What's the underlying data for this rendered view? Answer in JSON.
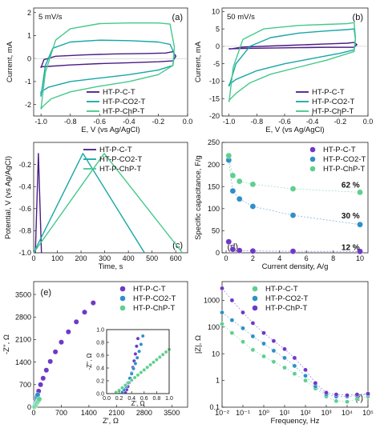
{
  "figure": {
    "colors": {
      "c": "#4b1b86",
      "co2": "#17a6a6",
      "chp": "#44c98a"
    },
    "marker_colors": {
      "c": "#6e39c6",
      "co2": "#2f8fc9",
      "chp": "#5fcf8f"
    }
  },
  "chart_data": [
    {
      "id": "a",
      "type": "line",
      "panel_label": "(a)",
      "annotation": "5 mV/s",
      "xlabel": "E, V (vs Ag/AgCl)",
      "ylabel": "Current, mA",
      "xlim": [
        -1.05,
        0.0
      ],
      "ylim": [
        -2.5,
        2.2
      ],
      "xticks": [
        -1.0,
        -0.8,
        -0.6,
        -0.4,
        -0.2,
        0.0
      ],
      "xtick_labels": [
        "-1.0",
        "-0.8",
        "-0.6",
        "-0.4",
        "-0.2",
        "0.0"
      ],
      "yticks": [
        -2,
        -1,
        0,
        1,
        2
      ],
      "ytick_labels": [
        "-2",
        "-1",
        "0",
        "1",
        "2"
      ],
      "legend": "lower-center",
      "series": [
        {
          "name": "HT-P-C-T",
          "key": "c",
          "x": [
            -1.0,
            -0.98,
            -0.9,
            -0.7,
            -0.5,
            -0.3,
            -0.15,
            -0.1,
            -0.08,
            -0.1,
            -0.2,
            -0.4,
            -0.6,
            -0.8,
            -0.95,
            -1.0,
            -1.0
          ],
          "y": [
            -0.4,
            -0.05,
            0.1,
            0.16,
            0.2,
            0.22,
            0.24,
            0.3,
            0.1,
            -0.1,
            -0.14,
            -0.18,
            -0.22,
            -0.28,
            -0.34,
            -0.36,
            -0.4
          ]
        },
        {
          "name": "HT-P-CO2-T",
          "key": "co2",
          "x": [
            -1.0,
            -0.97,
            -0.92,
            -0.8,
            -0.6,
            -0.4,
            -0.2,
            -0.12,
            -0.09,
            -0.1,
            -0.2,
            -0.4,
            -0.6,
            -0.8,
            -0.95,
            -1.0,
            -1.0
          ],
          "y": [
            -1.65,
            -0.3,
            0.45,
            0.72,
            0.8,
            0.78,
            0.72,
            0.62,
            0.2,
            -0.3,
            -0.5,
            -0.7,
            -0.85,
            -1.0,
            -1.25,
            -1.45,
            -1.65
          ]
        },
        {
          "name": "HT-P-ChP-T",
          "key": "chp",
          "x": [
            -1.0,
            -0.97,
            -0.9,
            -0.8,
            -0.6,
            -0.4,
            -0.2,
            -0.12,
            -0.09,
            -0.1,
            -0.2,
            -0.4,
            -0.6,
            -0.8,
            -0.93,
            -0.99,
            -1.0
          ],
          "y": [
            -2.2,
            -0.6,
            0.8,
            1.3,
            1.52,
            1.55,
            1.55,
            1.5,
            0.5,
            -0.3,
            -0.7,
            -1.0,
            -1.2,
            -1.45,
            -1.75,
            -2.1,
            -2.2
          ]
        }
      ]
    },
    {
      "id": "b",
      "type": "line",
      "panel_label": "(b)",
      "annotation": "50 mV/s",
      "xlabel": "E, V (vs Ag/AgCl)",
      "ylabel": "Current, mA",
      "xlim": [
        -1.05,
        0.0
      ],
      "ylim": [
        -20,
        11
      ],
      "xticks": [
        -1.0,
        -0.8,
        -0.6,
        -0.4,
        -0.2,
        0.0
      ],
      "xtick_labels": [
        "-1.0",
        "-0.8",
        "-0.6",
        "-0.4",
        "-0.2",
        "0.0"
      ],
      "yticks": [
        -20,
        -15,
        -10,
        -5,
        0,
        5,
        10
      ],
      "ytick_labels": [
        "-20",
        "-15",
        "-10",
        "-5",
        "0",
        "5",
        "10"
      ],
      "legend": "lower-right",
      "series": [
        {
          "name": "HT-P-C-T",
          "key": "c",
          "x": [
            -1.0,
            -0.9,
            -0.7,
            -0.5,
            -0.3,
            -0.15,
            -0.1,
            -0.08,
            -0.1,
            -0.3,
            -0.5,
            -0.7,
            -0.9,
            -1.0,
            -1.0
          ],
          "y": [
            -0.8,
            -0.2,
            0.1,
            0.4,
            0.7,
            0.9,
            1.1,
            0.5,
            -0.3,
            -0.3,
            -0.4,
            -0.5,
            -0.6,
            -0.7,
            -0.8
          ]
        },
        {
          "name": "HT-P-CO2-T",
          "key": "co2",
          "x": [
            -1.0,
            -0.95,
            -0.85,
            -0.7,
            -0.5,
            -0.3,
            -0.15,
            -0.1,
            -0.09,
            -0.1,
            -0.2,
            -0.4,
            -0.6,
            -0.8,
            -0.95,
            -1.0,
            -1.0
          ],
          "y": [
            -11.5,
            -5.0,
            0.0,
            2.5,
            3.8,
            4.4,
            4.8,
            5.0,
            2.0,
            -1.0,
            -2.0,
            -3.5,
            -5.0,
            -7.0,
            -9.5,
            -11.0,
            -11.5
          ]
        },
        {
          "name": "HT-P-ChP-T",
          "key": "chp",
          "x": [
            -1.0,
            -0.97,
            -0.9,
            -0.75,
            -0.5,
            -0.3,
            -0.15,
            -0.1,
            -0.09,
            -0.1,
            -0.3,
            -0.5,
            -0.7,
            -0.85,
            -0.95,
            -1.0,
            -1.0
          ],
          "y": [
            -16.0,
            -6.0,
            2.0,
            5.0,
            6.0,
            6.3,
            6.5,
            6.8,
            2.5,
            -1.5,
            -4.0,
            -6.0,
            -8.0,
            -10.5,
            -13.5,
            -15.5,
            -16.0
          ]
        }
      ]
    },
    {
      "id": "c",
      "type": "line",
      "panel_label": "(c)",
      "xlabel": "Time, s",
      "ylabel": "Potential, V (vs Ag/AgCl)",
      "xlim": [
        0,
        650
      ],
      "ylim": [
        -1.0,
        0.0
      ],
      "xticks": [
        0,
        100,
        200,
        300,
        400,
        500,
        600
      ],
      "xtick_labels": [
        "0",
        "100",
        "200",
        "300",
        "400",
        "500",
        "600"
      ],
      "yticks": [
        -1.0,
        -0.8,
        -0.6,
        -0.4,
        -0.2
      ],
      "ytick_labels": [
        "-1.0",
        "-0.8",
        "-0.6",
        "-0.4",
        "-0.2"
      ],
      "legend": "top-right",
      "series": [
        {
          "name": "HT-P-C-T",
          "key": "c",
          "x": [
            7,
            20,
            33
          ],
          "y": [
            -1.0,
            -0.1,
            -1.0
          ]
        },
        {
          "name": "HT-P-CO2-T",
          "key": "co2",
          "x": [
            0,
            208,
            468
          ],
          "y": [
            -1.0,
            -0.1,
            -1.0
          ]
        },
        {
          "name": "HT-P-ChP-T",
          "key": "chp",
          "x": [
            0,
            298,
            628
          ],
          "y": [
            -1.0,
            -0.1,
            -1.0
          ]
        }
      ]
    },
    {
      "id": "d",
      "type": "scatter",
      "panel_label": "(d)",
      "xlabel": "Current density, A/g",
      "ylabel": "Specific capacitance, F/g",
      "xlim": [
        -0.3,
        10.6
      ],
      "ylim": [
        0,
        250
      ],
      "xticks": [
        0,
        2,
        4,
        6,
        8,
        10
      ],
      "xtick_labels": [
        "0",
        "2",
        "4",
        "6",
        "8",
        "10"
      ],
      "yticks": [
        0,
        50,
        100,
        150,
        200,
        250
      ],
      "ytick_labels": [
        "0",
        "50",
        "100",
        "150",
        "200",
        "250"
      ],
      "legend": "top-right",
      "annotations": [
        {
          "text": "62 %",
          "key": "chp",
          "x": 9.3,
          "y": 155
        },
        {
          "text": "30 %",
          "key": "co2",
          "x": 9.3,
          "y": 85
        },
        {
          "text": "12 %",
          "key": "c",
          "x": 9.3,
          "y": 14
        }
      ],
      "series": [
        {
          "name": "HT-P-C-T",
          "key": "c",
          "x": [
            0.2,
            0.5,
            1,
            2,
            5,
            10
          ],
          "y": [
            25,
            8,
            5,
            4,
            3.5,
            3
          ]
        },
        {
          "name": "HT-P-CO2-T",
          "key": "co2",
          "x": [
            0.2,
            0.5,
            1,
            2,
            5,
            10
          ],
          "y": [
            210,
            140,
            122,
            105,
            85,
            64
          ]
        },
        {
          "name": "HT-P-ChP-T",
          "key": "chp",
          "x": [
            0.2,
            0.5,
            1,
            2,
            5,
            10
          ],
          "y": [
            220,
            175,
            162,
            155,
            145,
            137
          ]
        }
      ]
    },
    {
      "id": "e",
      "type": "scatter",
      "panel_label": "(e)",
      "xlabel": "Z', Ω",
      "ylabel": "-Z'', Ω",
      "xlim": [
        0,
        3900
      ],
      "ylim": [
        0,
        3900
      ],
      "xticks": [
        0,
        700,
        1400,
        2100,
        2800,
        3500
      ],
      "xtick_labels": [
        "0",
        "700",
        "1400",
        "2100",
        "2800",
        "3500"
      ],
      "yticks": [
        0,
        700,
        1400,
        2100,
        2800,
        3500
      ],
      "ytick_labels": [
        "0",
        "700",
        "1400",
        "2100",
        "2800",
        "3500"
      ],
      "legend": "top-right",
      "series": [
        {
          "name": "HT-P-C-T",
          "key": "c",
          "x": [
            30,
            55,
            85,
            125,
            175,
            240,
            320,
            420,
            550,
            700,
            880,
            1080,
            1290,
            1510
          ],
          "y": [
            60,
            180,
            330,
            500,
            700,
            900,
            1150,
            1420,
            1720,
            2020,
            2340,
            2650,
            2950,
            3240
          ]
        },
        {
          "name": "HT-P-CO2-T",
          "key": "co2",
          "x": [
            20,
            30,
            40,
            50,
            60,
            70,
            80,
            90,
            100
          ],
          "y": [
            20,
            50,
            90,
            130,
            180,
            230,
            280,
            330,
            380
          ]
        },
        {
          "name": "HT-P-ChP-T",
          "key": "chp",
          "x": [
            20,
            35,
            50,
            65,
            80,
            95,
            110,
            125,
            140
          ],
          "y": [
            15,
            40,
            70,
            100,
            130,
            160,
            190,
            220,
            250
          ]
        }
      ],
      "inset": {
        "xlabel": "Z', Ω",
        "ylabel": "-Z'', Ω",
        "xlim": [
          0,
          1.0
        ],
        "ylim": [
          0,
          1.0
        ],
        "xticks": [
          0,
          0.2,
          0.4,
          0.6,
          0.8,
          1.0
        ],
        "xtick_labels": [
          "0.0",
          "0.2",
          "0.4",
          "0.6",
          "0.8",
          "1.0"
        ],
        "yticks": [
          0,
          0.2,
          0.4,
          0.6,
          0.8,
          1.0
        ],
        "ytick_labels": [
          "0.0",
          "0.2",
          "0.4",
          "0.6",
          "0.8",
          "1.0"
        ],
        "series": [
          {
            "key": "c",
            "x": [
              0.3,
              0.32,
              0.34,
              0.36,
              0.38,
              0.4,
              0.42,
              0.44,
              0.46,
              0.48,
              0.5
            ],
            "y": [
              0.02,
              0.06,
              0.11,
              0.17,
              0.24,
              0.32,
              0.41,
              0.51,
              0.62,
              0.74,
              0.86
            ]
          },
          {
            "key": "co2",
            "x": [
              0.25,
              0.28,
              0.31,
              0.34,
              0.37,
              0.4,
              0.43,
              0.46,
              0.49,
              0.52,
              0.55,
              0.58
            ],
            "y": [
              0.02,
              0.06,
              0.11,
              0.17,
              0.24,
              0.31,
              0.39,
              0.47,
              0.56,
              0.66,
              0.77,
              0.9
            ]
          },
          {
            "key": "chp",
            "x": [
              0.15,
              0.2,
              0.25,
              0.3,
              0.35,
              0.4,
              0.45,
              0.5,
              0.55,
              0.6,
              0.65,
              0.7,
              0.75,
              0.8,
              0.85,
              0.9,
              0.95,
              1.0
            ],
            "y": [
              0.02,
              0.05,
              0.09,
              0.13,
              0.17,
              0.21,
              0.25,
              0.29,
              0.33,
              0.37,
              0.41,
              0.45,
              0.49,
              0.53,
              0.57,
              0.61,
              0.65,
              0.69
            ]
          }
        ]
      }
    },
    {
      "id": "f",
      "type": "scatter",
      "panel_label": "(f)",
      "xlabel": "Frequency, Hz",
      "ylabel": "|Z|, Ω",
      "x_scale": "log",
      "y_scale": "log",
      "xlim": [
        0.01,
        100000
      ],
      "ylim": [
        0.1,
        5000
      ],
      "xticks": [
        0.01,
        0.1,
        1,
        10,
        100,
        1000,
        10000,
        100000
      ],
      "xtick_labels": [
        "10⁻²",
        "10⁻¹",
        "10⁰",
        "10¹",
        "10²",
        "10³",
        "10⁴",
        "10⁵"
      ],
      "yticks": [
        0.1,
        1,
        10,
        100,
        1000
      ],
      "ytick_labels": [
        "0.1",
        "1",
        "10",
        "100",
        "1000"
      ],
      "legend": "top-right",
      "series": [
        {
          "name": "HT-P-C-T",
          "key": "chp",
          "x": [
            0.01,
            0.03,
            0.1,
            0.3,
            1,
            3,
            10,
            30,
            100,
            300,
            1000,
            3000,
            10000,
            30000,
            100000
          ],
          "y": [
            130,
            60,
            28,
            14,
            8,
            5,
            3,
            1.8,
            1.0,
            0.5,
            0.25,
            0.17,
            0.16,
            0.2,
            0.25
          ]
        },
        {
          "name": "HT-P-CO2-T",
          "key": "co2",
          "x": [
            0.01,
            0.03,
            0.1,
            0.3,
            1,
            3,
            10,
            30,
            100,
            300,
            1000,
            3000,
            10000,
            30000,
            100000
          ],
          "y": [
            350,
            180,
            90,
            45,
            24,
            13,
            7,
            3.5,
            1.5,
            0.6,
            0.3,
            0.25,
            0.25,
            0.27,
            0.3
          ]
        },
        {
          "name": "HT-P-ChP-T",
          "key": "c",
          "x": [
            0.01,
            0.03,
            0.1,
            0.3,
            1,
            3,
            10,
            30,
            100,
            300,
            1000,
            3000,
            10000,
            30000,
            100000
          ],
          "y": [
            2800,
            1000,
            350,
            140,
            60,
            30,
            15,
            7,
            2.5,
            0.8,
            0.35,
            0.3,
            0.28,
            0.3,
            0.32
          ]
        }
      ]
    }
  ]
}
